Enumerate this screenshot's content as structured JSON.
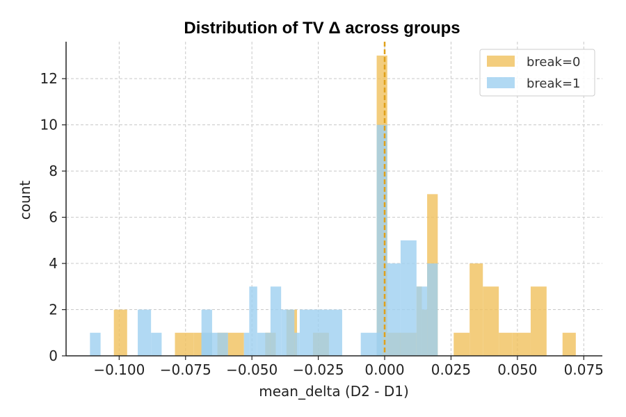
{
  "chart_data": {
    "type": "bar",
    "title": "Distribution of TV Δ across groups",
    "xlabel": "mean_delta (D2 - D1)",
    "ylabel": "count",
    "xlim": [
      -0.12,
      0.082
    ],
    "ylim": [
      0,
      13.6
    ],
    "xticks": [
      -0.1,
      -0.075,
      -0.05,
      -0.025,
      0.0,
      0.025,
      0.05,
      0.075
    ],
    "xtick_labels": [
      "−0.100",
      "−0.075",
      "−0.050",
      "−0.025",
      "0.000",
      "0.025",
      "0.050",
      "0.075"
    ],
    "yticks": [
      0,
      2,
      4,
      6,
      8,
      10,
      12
    ],
    "ytick_labels": [
      "0",
      "2",
      "4",
      "6",
      "8",
      "10",
      "12"
    ],
    "grid": true,
    "legend_position": "top-right",
    "reference_line": {
      "x": 0.0,
      "color": "#E0A11B",
      "style": "dashed"
    },
    "series": [
      {
        "name": "break=0",
        "color": "#F0C15C",
        "bars": [
          {
            "x0": -0.102,
            "x1": -0.097,
            "count": 2
          },
          {
            "x0": -0.079,
            "x1": -0.072,
            "count": 1
          },
          {
            "x0": -0.072,
            "x1": -0.065,
            "count": 1
          },
          {
            "x0": -0.063,
            "x1": -0.059,
            "count": 1
          },
          {
            "x0": -0.059,
            "x1": -0.053,
            "count": 1
          },
          {
            "x0": -0.045,
            "x1": -0.041,
            "count": 1
          },
          {
            "x0": -0.037,
            "x1": -0.033,
            "count": 2
          },
          {
            "x0": -0.027,
            "x1": -0.021,
            "count": 1
          },
          {
            "x0": -0.003,
            "x1": 0.001,
            "count": 13
          },
          {
            "x0": 0.001,
            "x1": 0.012,
            "count": 1
          },
          {
            "x0": 0.012,
            "x1": 0.014,
            "count": 3
          },
          {
            "x0": 0.014,
            "x1": 0.016,
            "count": 2
          },
          {
            "x0": 0.016,
            "x1": 0.02,
            "count": 7
          },
          {
            "x0": 0.026,
            "x1": 0.032,
            "count": 1
          },
          {
            "x0": 0.032,
            "x1": 0.037,
            "count": 4
          },
          {
            "x0": 0.037,
            "x1": 0.043,
            "count": 3
          },
          {
            "x0": 0.043,
            "x1": 0.048,
            "count": 1
          },
          {
            "x0": 0.048,
            "x1": 0.055,
            "count": 1
          },
          {
            "x0": 0.055,
            "x1": 0.061,
            "count": 3
          },
          {
            "x0": 0.067,
            "x1": 0.072,
            "count": 1
          }
        ]
      },
      {
        "name": "break=1",
        "color": "#9ED0F0",
        "bars": [
          {
            "x0": -0.111,
            "x1": -0.107,
            "count": 1
          },
          {
            "x0": -0.093,
            "x1": -0.088,
            "count": 2
          },
          {
            "x0": -0.088,
            "x1": -0.084,
            "count": 1
          },
          {
            "x0": -0.069,
            "x1": -0.065,
            "count": 2
          },
          {
            "x0": -0.069,
            "x1": -0.059,
            "count": 1
          },
          {
            "x0": -0.053,
            "x1": -0.051,
            "count": 1
          },
          {
            "x0": -0.051,
            "x1": -0.048,
            "count": 3
          },
          {
            "x0": -0.048,
            "x1": -0.043,
            "count": 1
          },
          {
            "x0": -0.043,
            "x1": -0.039,
            "count": 3
          },
          {
            "x0": -0.039,
            "x1": -0.034,
            "count": 2
          },
          {
            "x0": -0.034,
            "x1": -0.032,
            "count": 1
          },
          {
            "x0": -0.032,
            "x1": -0.016,
            "count": 2
          },
          {
            "x0": -0.009,
            "x1": -0.001,
            "count": 1
          },
          {
            "x0": -0.003,
            "x1": 0.001,
            "count": 10
          },
          {
            "x0": 0.001,
            "x1": 0.006,
            "count": 4
          },
          {
            "x0": 0.006,
            "x1": 0.012,
            "count": 5
          },
          {
            "x0": 0.012,
            "x1": 0.016,
            "count": 3
          },
          {
            "x0": 0.016,
            "x1": 0.02,
            "count": 4
          }
        ]
      }
    ]
  }
}
